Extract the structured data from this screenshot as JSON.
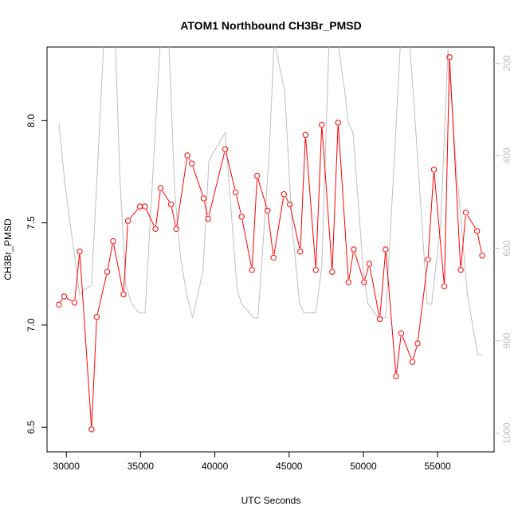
{
  "chart_data": {
    "type": "line",
    "title": "ATOM1 Northbound CH3Br_PMSD",
    "xlabel": "UTC Seconds",
    "ylabel": "CH3Br_PMSD",
    "xlim": [
      28700,
      58800
    ],
    "ylim": [
      6.38,
      8.36
    ],
    "y2lim": [
      1040,
      165
    ],
    "x_ticks": [
      30000,
      35000,
      40000,
      45000,
      50000,
      55000
    ],
    "y_ticks": [
      6.5,
      7.0,
      7.5,
      8.0
    ],
    "y2_ticks": [
      200,
      400,
      600,
      800,
      1000
    ],
    "grid": false,
    "series": [
      {
        "role": "primary",
        "color": "#ff0000",
        "marker": "open-circle",
        "x": [
          29500,
          29850,
          30550,
          30900,
          31700,
          32050,
          32750,
          33150,
          33850,
          34150,
          34950,
          35300,
          36000,
          36350,
          37050,
          37400,
          38150,
          38450,
          39250,
          39550,
          40700,
          41400,
          41800,
          42500,
          42850,
          43550,
          43950,
          44650,
          45050,
          45750,
          46100,
          46800,
          47200,
          47900,
          48300,
          49000,
          49350,
          50050,
          50400,
          51100,
          51500,
          52200,
          52550,
          53300,
          53650,
          54350,
          54750,
          55450,
          55800,
          56550,
          56900,
          57650,
          58000
        ],
        "y": [
          7.1,
          7.14,
          7.11,
          7.36,
          6.49,
          7.04,
          7.26,
          7.41,
          7.15,
          7.51,
          7.58,
          7.58,
          7.47,
          7.67,
          7.59,
          7.47,
          7.83,
          7.79,
          7.62,
          7.52,
          7.86,
          7.65,
          7.53,
          7.27,
          7.73,
          7.56,
          7.33,
          7.64,
          7.59,
          7.36,
          7.93,
          7.27,
          7.98,
          7.26,
          7.99,
          7.21,
          7.37,
          7.21,
          7.3,
          7.03,
          7.37,
          6.75,
          6.96,
          6.82,
          6.91,
          7.32,
          7.76,
          7.19,
          8.31,
          7.27,
          7.55,
          7.46,
          7.34
        ]
      },
      {
        "role": "secondary",
        "color": "#bebebe",
        "x": [
          29500,
          29900,
          30400,
          30900,
          31200,
          31700,
          32500,
          32800,
          33300,
          33600,
          34000,
          34400,
          34900,
          35300,
          36300,
          36600,
          36900,
          37300,
          37700,
          38100,
          38500,
          39200,
          39600,
          40700,
          41500,
          41800,
          42600,
          42900,
          43650,
          44000,
          44300,
          44700,
          45200,
          45700,
          46000,
          46800,
          47200,
          47700,
          48000,
          48700,
          49000,
          49300,
          50000,
          50300,
          51000,
          51500,
          52100,
          52500,
          53100,
          53600,
          54300,
          54600,
          55200,
          55700,
          56200,
          57000,
          57700,
          58000
        ],
        "y": [
          330,
          460,
          580,
          700,
          690,
          680,
          170,
          100,
          150,
          440,
          680,
          720,
          740,
          740,
          170,
          100,
          150,
          480,
          620,
          700,
          750,
          650,
          410,
          350,
          690,
          720,
          750,
          750,
          400,
          150,
          200,
          260,
          550,
          720,
          740,
          740,
          640,
          140,
          90,
          250,
          330,
          350,
          650,
          720,
          750,
          750,
          400,
          150,
          150,
          380,
          720,
          720,
          550,
          170,
          400,
          700,
          830,
          830
        ]
      }
    ]
  }
}
